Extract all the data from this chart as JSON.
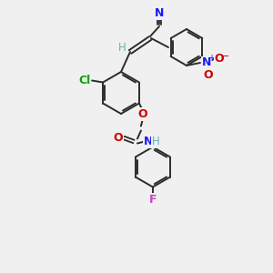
{
  "bg_color": "#f0f0f0",
  "bond_color": "#2c2c2c",
  "atom_colors": {
    "N": "#1a1aff",
    "C": "#2c2c2c",
    "H": "#6ab0b0",
    "O": "#cc0000",
    "Cl": "#00aa00",
    "F": "#cc44cc"
  },
  "figsize": [
    3.0,
    3.0
  ],
  "dpi": 100
}
